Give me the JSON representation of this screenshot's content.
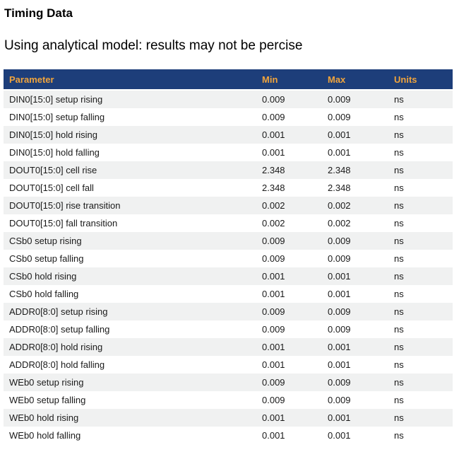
{
  "page": {
    "title": "Timing Data",
    "subtitle": "Using analytical model: results may not be percise"
  },
  "colors": {
    "header_bg": "#1d3e7a",
    "header_text": "#f0a43c",
    "row_alt_bg": "#f0f1f1",
    "row_bg": "#ffffff",
    "body_text": "#1a1a1a"
  },
  "table": {
    "columns": [
      "Parameter",
      "Min",
      "Max",
      "Units"
    ],
    "rows": [
      {
        "parameter": "DIN0[15:0] setup rising",
        "min": "0.009",
        "max": "0.009",
        "units": "ns"
      },
      {
        "parameter": "DIN0[15:0] setup falling",
        "min": "0.009",
        "max": "0.009",
        "units": "ns"
      },
      {
        "parameter": "DIN0[15:0] hold rising",
        "min": "0.001",
        "max": "0.001",
        "units": "ns"
      },
      {
        "parameter": "DIN0[15:0] hold falling",
        "min": "0.001",
        "max": "0.001",
        "units": "ns"
      },
      {
        "parameter": "DOUT0[15:0] cell rise",
        "min": "2.348",
        "max": "2.348",
        "units": "ns"
      },
      {
        "parameter": "DOUT0[15:0] cell fall",
        "min": "2.348",
        "max": "2.348",
        "units": "ns"
      },
      {
        "parameter": "DOUT0[15:0] rise transition",
        "min": "0.002",
        "max": "0.002",
        "units": "ns"
      },
      {
        "parameter": "DOUT0[15:0] fall transition",
        "min": "0.002",
        "max": "0.002",
        "units": "ns"
      },
      {
        "parameter": "CSb0 setup rising",
        "min": "0.009",
        "max": "0.009",
        "units": "ns"
      },
      {
        "parameter": "CSb0 setup falling",
        "min": "0.009",
        "max": "0.009",
        "units": "ns"
      },
      {
        "parameter": "CSb0 hold rising",
        "min": "0.001",
        "max": "0.001",
        "units": "ns"
      },
      {
        "parameter": "CSb0 hold falling",
        "min": "0.001",
        "max": "0.001",
        "units": "ns"
      },
      {
        "parameter": "ADDR0[8:0] setup rising",
        "min": "0.009",
        "max": "0.009",
        "units": "ns"
      },
      {
        "parameter": "ADDR0[8:0] setup falling",
        "min": "0.009",
        "max": "0.009",
        "units": "ns"
      },
      {
        "parameter": "ADDR0[8:0] hold rising",
        "min": "0.001",
        "max": "0.001",
        "units": "ns"
      },
      {
        "parameter": "ADDR0[8:0] hold falling",
        "min": "0.001",
        "max": "0.001",
        "units": "ns"
      },
      {
        "parameter": "WEb0 setup rising",
        "min": "0.009",
        "max": "0.009",
        "units": "ns"
      },
      {
        "parameter": "WEb0 setup falling",
        "min": "0.009",
        "max": "0.009",
        "units": "ns"
      },
      {
        "parameter": "WEb0 hold rising",
        "min": "0.001",
        "max": "0.001",
        "units": "ns"
      },
      {
        "parameter": "WEb0 hold falling",
        "min": "0.001",
        "max": "0.001",
        "units": "ns"
      }
    ]
  }
}
